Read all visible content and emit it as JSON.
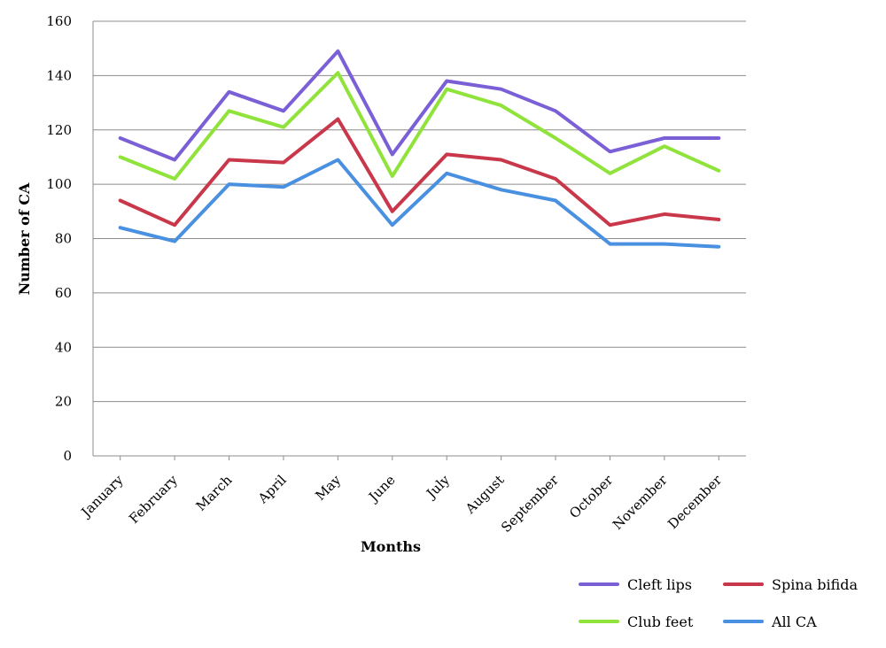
{
  "chart_data": {
    "type": "line",
    "title": "",
    "xlabel": "Months",
    "ylabel": "Number of CA",
    "ylim": [
      0,
      160
    ],
    "yticks": [
      0,
      20,
      40,
      60,
      80,
      100,
      120,
      140,
      160
    ],
    "grid": "horizontal",
    "legend_position": "bottom-right",
    "categories": [
      "January",
      "February",
      "March",
      "April",
      "May",
      "June",
      "July",
      "August",
      "September",
      "October",
      "November",
      "December"
    ],
    "series": [
      {
        "name": "Cleft lips",
        "color": "#7b5fd6",
        "values": [
          117,
          109,
          134,
          127,
          149,
          111,
          138,
          135,
          127,
          112,
          117,
          117
        ]
      },
      {
        "name": "Spina bifida",
        "color": "#c9374a",
        "values": [
          94,
          85,
          109,
          108,
          124,
          90,
          111,
          109,
          102,
          85,
          89,
          87
        ]
      },
      {
        "name": "Club feet",
        "color": "#8fe33a",
        "values": [
          110,
          102,
          127,
          121,
          141,
          103,
          135,
          129,
          117,
          104,
          114,
          105
        ]
      },
      {
        "name": "All CA",
        "color": "#4a90e0",
        "values": [
          84,
          79,
          100,
          99,
          109,
          85,
          104,
          98,
          94,
          78,
          78,
          77
        ]
      }
    ]
  }
}
